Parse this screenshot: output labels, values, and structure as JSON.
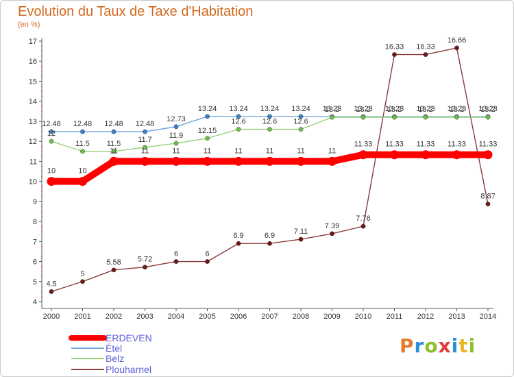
{
  "header": {
    "title": "Evolution du Taux de Taxe d'Habitation",
    "unit": "(en %)"
  },
  "logo": {
    "text": "Proxiti",
    "colors": [
      "#e8792a",
      "#2a8fd6",
      "#8fbf2a",
      "#e03a3a",
      "#2a8fd6",
      "#e8b82a",
      "#8fbf2a"
    ]
  },
  "chart_data": {
    "type": "line",
    "title": "Evolution du Taux de Taxe d'Habitation",
    "ylabel": "(en %)",
    "xlabel": "",
    "x": [
      "2000",
      "2001",
      "2002",
      "2003",
      "2004",
      "2005",
      "2006",
      "2007",
      "2008",
      "2009",
      "2010",
      "2011",
      "2012",
      "2013",
      "2014"
    ],
    "ylim": [
      4,
      17
    ],
    "yticks": [
      "4",
      "5",
      "6",
      "7",
      "8",
      "9",
      "10",
      "11",
      "12",
      "13",
      "14",
      "15",
      "16",
      "17"
    ],
    "grid": false,
    "legend": "bottom-left",
    "series": [
      {
        "name": "ERDEVEN",
        "color": "#ff0000",
        "values": [
          10,
          10,
          11,
          11,
          11,
          11,
          11,
          11,
          11,
          11,
          11.33,
          11.33,
          11.33,
          11.33,
          11.33
        ],
        "labels": [
          "10",
          "10",
          "11",
          "11",
          "11",
          "11",
          "11",
          "11",
          "11",
          "11",
          "11.33",
          "11.33",
          "11.33",
          "11.33",
          "11.33"
        ]
      },
      {
        "name": "Étel",
        "color": "#6fa8dc",
        "marker": "#3d7fc4",
        "values": [
          12.48,
          12.48,
          12.48,
          12.48,
          12.73,
          13.24,
          13.24,
          13.24,
          13.24,
          13.23,
          13.23,
          13.23,
          13.23,
          13.23,
          13.23
        ],
        "labels": [
          "12.48",
          "12.48",
          "12.48",
          "12.48",
          "12.73",
          "13.24",
          "13.24",
          "13.24",
          "13.24",
          "13.23",
          "13.23",
          "13.23",
          "13.23",
          "13.23",
          "13.23"
        ]
      },
      {
        "name": "Belz",
        "color": "#93d275",
        "marker": "#6dbf4a",
        "values": [
          12,
          11.5,
          11.5,
          11.7,
          11.9,
          12.15,
          12.6,
          12.6,
          12.6,
          13.2,
          13.2,
          13.2,
          13.2,
          13.2,
          13.2
        ],
        "labels": [
          "12",
          "11.5",
          "11.5",
          "11.7",
          "11.9",
          "12.15",
          "12.6",
          "12.6",
          "12.6",
          "13.2",
          "13.2",
          "13.2",
          "13.2",
          "13.2",
          "13.2"
        ]
      },
      {
        "name": "Plouharnel",
        "color": "#8b3a3a",
        "marker": "#6b1a1a",
        "values": [
          4.5,
          5,
          5.58,
          5.72,
          6,
          6,
          6.9,
          6.9,
          7.11,
          7.39,
          7.76,
          16.33,
          16.33,
          16.66,
          8.87
        ],
        "labels": [
          "4.5",
          "5",
          "5.58",
          "5.72",
          "6",
          "6",
          "6.9",
          "6.9",
          "7.11",
          "7.39",
          "7.76",
          "16.33",
          "16.33",
          "16.66",
          "8.87"
        ]
      }
    ]
  }
}
